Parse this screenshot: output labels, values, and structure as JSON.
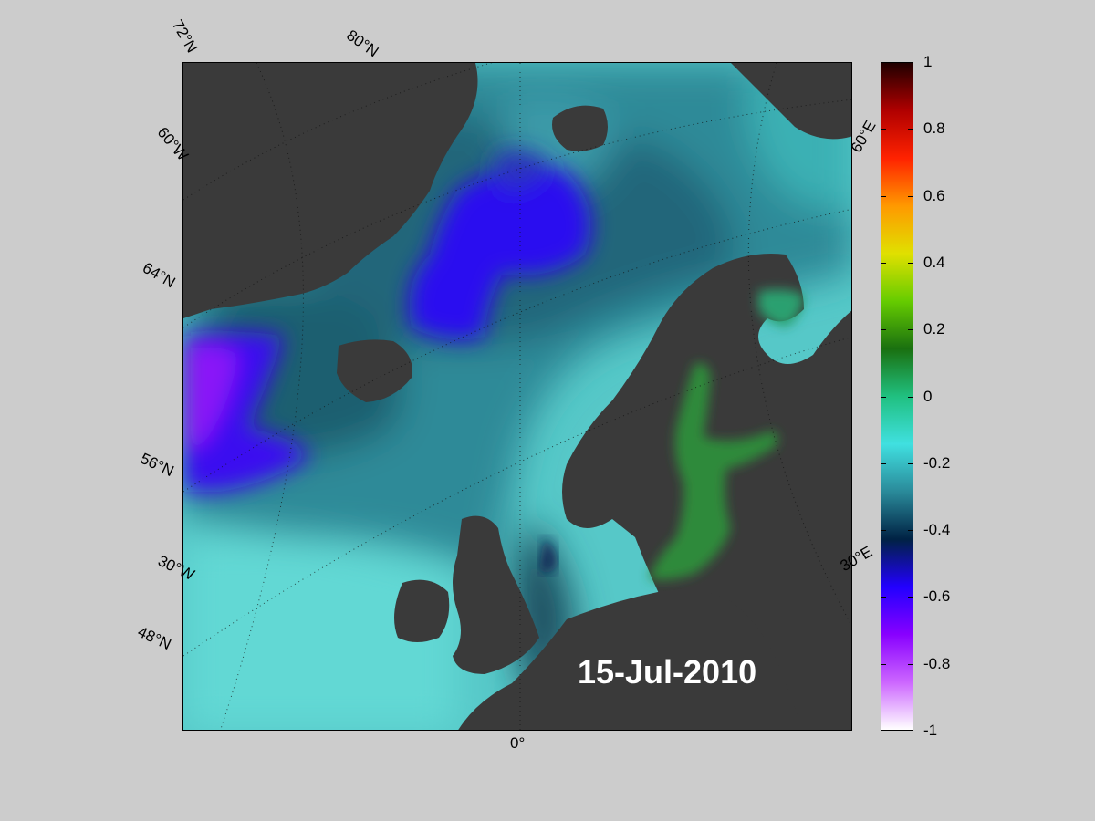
{
  "date": "15-Jul-2010",
  "map_labels": {
    "lat_72": "72°N",
    "lat_60w": "60°W",
    "lat_80": "80°N",
    "lat_64": "64°N",
    "lat_56": "56°N",
    "lon_30w": "30°W",
    "lat_48": "48°N",
    "lon_0": "0°",
    "lon_60e": "60°E",
    "lon_30e": "30°E"
  },
  "colorbar": {
    "min": -1,
    "max": 1,
    "ticks": [
      "1",
      "0.8",
      "0.6",
      "0.4",
      "0.2",
      "0",
      "-0.2",
      "-0.4",
      "-0.6",
      "-0.8",
      "-1"
    ],
    "tick_values": [
      1,
      0.8,
      0.6,
      0.4,
      0.2,
      0,
      -0.2,
      -0.4,
      -0.6,
      -0.8,
      -1
    ],
    "colors": [
      "#ffffff",
      "#cc66ff",
      "#8800ff",
      "#2200ff",
      "#002244",
      "#2a8a9a",
      "#40e0e0",
      "#20c080",
      "#1a7010",
      "#66cc00",
      "#e0e000",
      "#ff9900",
      "#ff2200",
      "#b00000",
      "#200000"
    ]
  },
  "colors": {
    "land": "#3a3a3a",
    "ocean_base": "#4fbfbf",
    "background": "#cccccc"
  }
}
